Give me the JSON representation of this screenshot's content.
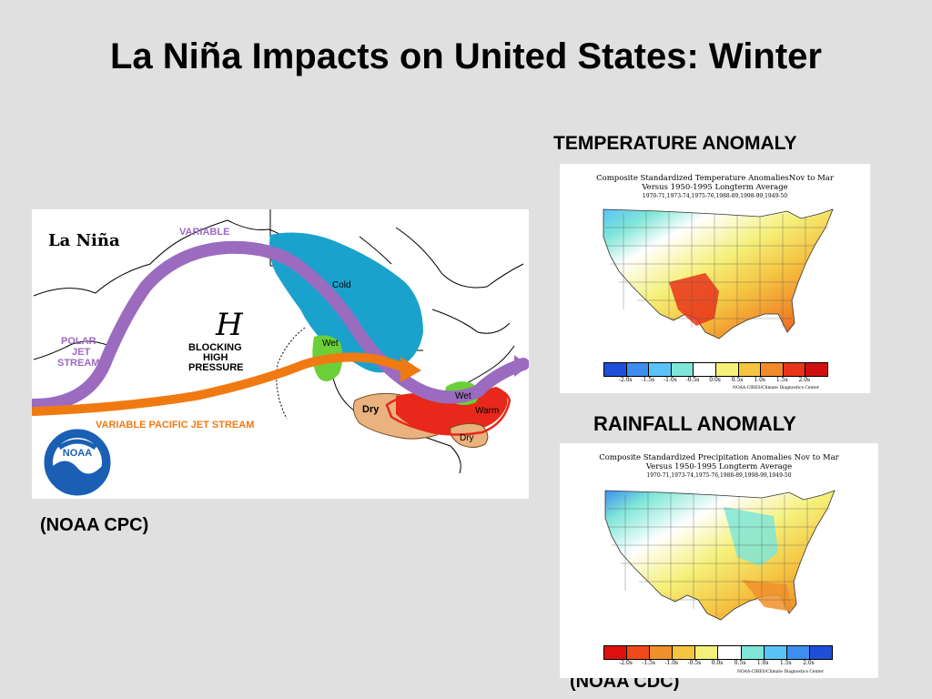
{
  "slide": {
    "title": "La Niña Impacts on United States: Winter",
    "temp_label": "TEMPERATURE ANOMALY",
    "rain_label": "RAINFALL ANOMALY",
    "cpc_credit": "(NOAA CPC)",
    "cdc_credit": "(NOAA CDC)",
    "background": "#e0e0e0"
  },
  "lanina_map": {
    "heading": "La Niña",
    "variable_label": "VARIABLE",
    "polar_jet_label": [
      "POLAR",
      "JET",
      "STREAM"
    ],
    "blocking_label": [
      "BLOCKING",
      "HIGH",
      "PRESSURE"
    ],
    "high_symbol": "H",
    "pacific_jet_label": "VARIABLE PACIFIC JET STREAM",
    "region_labels": {
      "cold": "Cold",
      "wet_northwest": "Wet",
      "wet_ohio": "Wet",
      "dry_southwest": "Dry",
      "warm": "Warm",
      "dry_southeast": "Dry"
    },
    "logo_text": "NOAA",
    "colors": {
      "polar_jet": "#9b6bc0",
      "pacific_jet": "#f07a12",
      "cold": "#1aa2cc",
      "wet": "#6bcf3a",
      "warm": "#e8281a",
      "dry": "#e9b27f",
      "label_purple": "#9b6bc0",
      "label_orange": "#f07a12"
    }
  },
  "temperature_map": {
    "title_line1": "Composite Standardized Temperature AnomaliesNov to Mar",
    "title_line2": "Versus 1950-1995 Longterm Average",
    "years": "1970-71,1973-74,1975-76,1988-89,1998-99,1949-50",
    "colorbar_ticks": [
      "-2.0s",
      "-1.5s",
      "-1.0s",
      "-0.5s",
      "0.0s",
      "0.5s",
      "1.0s",
      "1.5s",
      "2.0s"
    ],
    "colorbar_colors": [
      "#1f4fd8",
      "#3d8ef0",
      "#59c3f5",
      "#7fe6d8",
      "#ffffff",
      "#f5f07a",
      "#f5c542",
      "#f08a2a",
      "#e8341a",
      "#d01010"
    ],
    "credit": "NOAA-CIRES/Climate Diagnostics Center"
  },
  "rainfall_map": {
    "title_line1": "Composite Standardized Precipitation Anomalies Nov to Mar",
    "title_line2": "Versus 1950-1995 Longterm Average",
    "years": "1970-71,1973-74,1975-76,1988-89,1998-99,1949-50",
    "colorbar_ticks": [
      "-2.0s",
      "-1.5s",
      "-1.0s",
      "-0.5s",
      "0.0s",
      "0.5s",
      "1.0s",
      "1.5s",
      "2.0s"
    ],
    "colorbar_colors": [
      "#e01010",
      "#f04a1a",
      "#f0902a",
      "#f5c542",
      "#f5f07a",
      "#ffffff",
      "#7fe6d8",
      "#59c3f5",
      "#3d8ef0",
      "#1f4fd8"
    ],
    "credit": "NOAA-CIRES/Climate Diagnostics Center"
  }
}
